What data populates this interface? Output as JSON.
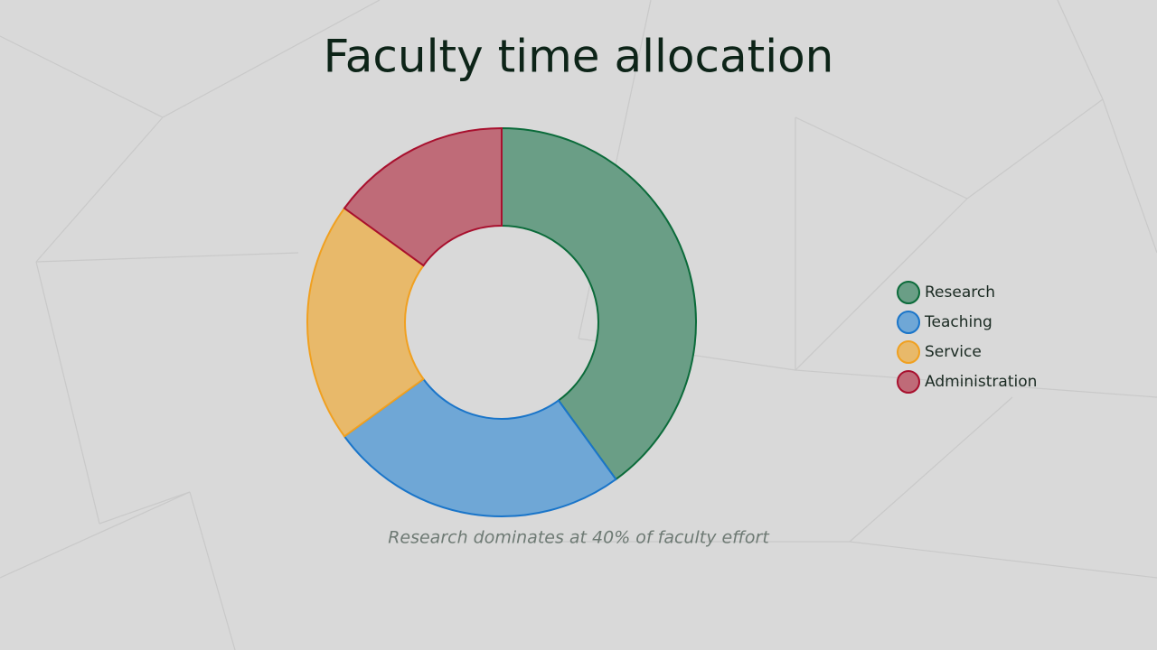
{
  "chart_data": {
    "type": "pie",
    "title": "Faculty time allocation",
    "caption": "Research dominates at 40% of faculty effort",
    "categories": [
      "Research",
      "Teaching",
      "Service",
      "Administration"
    ],
    "values": [
      40,
      25,
      20,
      15
    ],
    "colors": [
      "#6a9e86",
      "#6fa7d6",
      "#e8b96a",
      "#bf6b78"
    ],
    "edge_colors": [
      "#0b6b3a",
      "#1a75c9",
      "#f0a020",
      "#a8102e"
    ],
    "legend": "right"
  }
}
